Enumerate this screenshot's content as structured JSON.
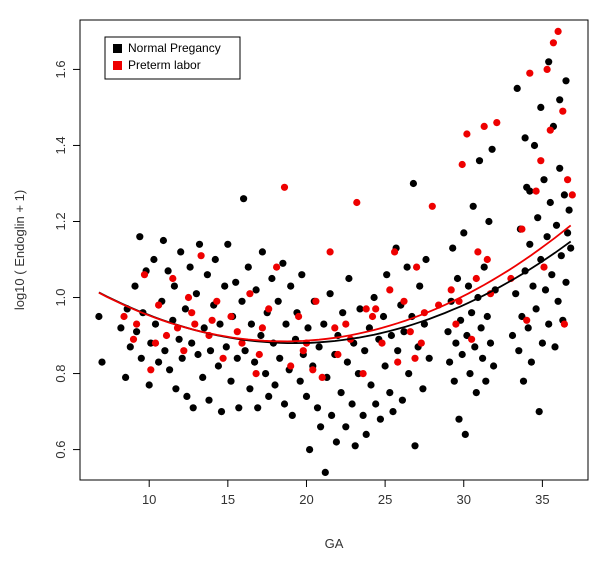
{
  "chart_data": {
    "type": "scatter",
    "xlabel": "GA",
    "ylabel": "log10 ( Endoglin + 1)",
    "xlim": [
      5.6,
      37.9
    ],
    "ylim": [
      0.52,
      1.73
    ],
    "xticks": [
      10,
      15,
      20,
      25,
      30,
      35
    ],
    "yticks": [
      0.6,
      0.8,
      1.0,
      1.2,
      1.4,
      1.6
    ],
    "xtick_labels": [
      "10",
      "15",
      "20",
      "25",
      "30",
      "35"
    ],
    "ytick_labels": [
      "0.6",
      "0.8",
      "1.0",
      "1.2",
      "1.4",
      "1.6"
    ],
    "legend": {
      "position": "top-left"
    },
    "colors": {
      "normal": "#000000",
      "preterm": "#ee0000"
    },
    "series": [
      {
        "name": "Normal Pregancy",
        "color": "#000000",
        "points": [
          [
            6.8,
            0.95
          ],
          [
            7.0,
            0.83
          ],
          [
            8.2,
            0.92
          ],
          [
            8.5,
            0.79
          ],
          [
            8.6,
            0.97
          ],
          [
            8.8,
            0.87
          ],
          [
            9.1,
            1.03
          ],
          [
            9.2,
            0.91
          ],
          [
            9.4,
            1.16
          ],
          [
            9.5,
            0.84
          ],
          [
            9.6,
            0.96
          ],
          [
            9.8,
            1.07
          ],
          [
            10.0,
            0.77
          ],
          [
            10.1,
            0.88
          ],
          [
            10.3,
            1.1
          ],
          [
            10.4,
            0.93
          ],
          [
            10.6,
            0.83
          ],
          [
            10.8,
            0.99
          ],
          [
            10.9,
            1.15
          ],
          [
            11.0,
            0.86
          ],
          [
            11.2,
            1.07
          ],
          [
            11.3,
            0.81
          ],
          [
            11.5,
            0.94
          ],
          [
            11.6,
            1.03
          ],
          [
            11.7,
            0.76
          ],
          [
            11.9,
            0.89
          ],
          [
            12.0,
            1.12
          ],
          [
            12.1,
            0.84
          ],
          [
            12.3,
            0.97
          ],
          [
            12.4,
            0.74
          ],
          [
            12.6,
            1.08
          ],
          [
            12.7,
            0.88
          ],
          [
            12.8,
            0.71
          ],
          [
            13.0,
            1.01
          ],
          [
            13.1,
            0.85
          ],
          [
            13.2,
            1.14
          ],
          [
            13.4,
            0.79
          ],
          [
            13.5,
            0.92
          ],
          [
            13.7,
            1.06
          ],
          [
            13.8,
            0.73
          ],
          [
            13.9,
            0.86
          ],
          [
            14.1,
            0.98
          ],
          [
            14.2,
            1.1
          ],
          [
            14.4,
            0.82
          ],
          [
            14.5,
            0.93
          ],
          [
            14.6,
            0.7
          ],
          [
            14.8,
            1.03
          ],
          [
            14.9,
            0.87
          ],
          [
            15.0,
            1.14
          ],
          [
            15.2,
            0.78
          ],
          [
            15.3,
            0.95
          ],
          [
            15.5,
            1.04
          ],
          [
            15.6,
            0.84
          ],
          [
            15.7,
            0.71
          ],
          [
            15.9,
            0.99
          ],
          [
            16.0,
            1.26
          ],
          [
            16.1,
            0.86
          ],
          [
            16.3,
            1.08
          ],
          [
            16.4,
            0.76
          ],
          [
            16.5,
            0.93
          ],
          [
            16.7,
            0.83
          ],
          [
            16.8,
            1.02
          ],
          [
            16.9,
            0.71
          ],
          [
            17.1,
            0.9
          ],
          [
            17.2,
            1.12
          ],
          [
            17.4,
            0.8
          ],
          [
            17.5,
            0.96
          ],
          [
            17.6,
            0.74
          ],
          [
            17.8,
            1.05
          ],
          [
            17.9,
            0.88
          ],
          [
            18.0,
            0.77
          ],
          [
            18.2,
            0.99
          ],
          [
            18.3,
            0.84
          ],
          [
            18.5,
            1.09
          ],
          [
            18.6,
            0.72
          ],
          [
            18.7,
            0.93
          ],
          [
            18.9,
            0.81
          ],
          [
            19.0,
            1.03
          ],
          [
            19.1,
            0.69
          ],
          [
            19.3,
            0.89
          ],
          [
            19.4,
            0.96
          ],
          [
            19.6,
            0.78
          ],
          [
            19.7,
            1.06
          ],
          [
            19.8,
            0.85
          ],
          [
            20.0,
            0.74
          ],
          [
            20.1,
            0.92
          ],
          [
            20.2,
            0.6
          ],
          [
            20.4,
            0.82
          ],
          [
            20.5,
            0.99
          ],
          [
            20.7,
            0.71
          ],
          [
            20.8,
            0.87
          ],
          [
            20.9,
            0.66
          ],
          [
            21.1,
            0.93
          ],
          [
            21.2,
            0.54
          ],
          [
            21.3,
            0.79
          ],
          [
            21.5,
            1.01
          ],
          [
            21.6,
            0.69
          ],
          [
            21.8,
            0.85
          ],
          [
            21.9,
            0.62
          ],
          [
            22.0,
            0.9
          ],
          [
            22.2,
            0.75
          ],
          [
            22.3,
            0.96
          ],
          [
            22.5,
            0.66
          ],
          [
            22.6,
            0.83
          ],
          [
            22.7,
            1.05
          ],
          [
            22.9,
            0.72
          ],
          [
            23.0,
            0.88
          ],
          [
            23.1,
            0.61
          ],
          [
            23.3,
            0.8
          ],
          [
            23.4,
            0.97
          ],
          [
            23.6,
            0.69
          ],
          [
            23.7,
            0.86
          ],
          [
            23.8,
            0.64
          ],
          [
            24.0,
            0.92
          ],
          [
            24.1,
            0.77
          ],
          [
            24.3,
            1.0
          ],
          [
            24.4,
            0.72
          ],
          [
            24.6,
            0.89
          ],
          [
            24.7,
            0.68
          ],
          [
            24.9,
            0.95
          ],
          [
            25.0,
            0.82
          ],
          [
            25.1,
            1.06
          ],
          [
            25.3,
            0.75
          ],
          [
            25.4,
            0.9
          ],
          [
            25.5,
            0.7
          ],
          [
            25.7,
            1.13
          ],
          [
            25.8,
            0.86
          ],
          [
            26.0,
            0.98
          ],
          [
            26.1,
            0.73
          ],
          [
            26.2,
            0.91
          ],
          [
            26.4,
            1.08
          ],
          [
            26.5,
            0.8
          ],
          [
            26.7,
            0.95
          ],
          [
            26.8,
            1.3
          ],
          [
            26.9,
            0.61
          ],
          [
            27.1,
            0.87
          ],
          [
            27.2,
            1.03
          ],
          [
            27.4,
            0.76
          ],
          [
            27.5,
            0.93
          ],
          [
            27.6,
            1.1
          ],
          [
            27.8,
            0.84
          ],
          [
            29.0,
            0.91
          ],
          [
            29.1,
            0.83
          ],
          [
            29.2,
            0.99
          ],
          [
            29.3,
            1.13
          ],
          [
            29.4,
            0.78
          ],
          [
            29.5,
            0.88
          ],
          [
            29.6,
            1.05
          ],
          [
            29.7,
            0.68
          ],
          [
            29.8,
            0.94
          ],
          [
            29.9,
            0.85
          ],
          [
            30.0,
            1.17
          ],
          [
            30.1,
            0.64
          ],
          [
            30.2,
            0.9
          ],
          [
            30.3,
            1.03
          ],
          [
            30.4,
            0.8
          ],
          [
            30.5,
            0.96
          ],
          [
            30.6,
            1.24
          ],
          [
            30.7,
            0.87
          ],
          [
            30.8,
            0.75
          ],
          [
            30.9,
            1.0
          ],
          [
            31.0,
            1.36
          ],
          [
            31.1,
            0.92
          ],
          [
            31.2,
            0.84
          ],
          [
            31.3,
            1.08
          ],
          [
            31.4,
            0.78
          ],
          [
            31.5,
            0.95
          ],
          [
            31.6,
            1.2
          ],
          [
            31.7,
            0.88
          ],
          [
            31.8,
            1.39
          ],
          [
            31.9,
            0.82
          ],
          [
            32.0,
            1.02
          ],
          [
            33.1,
            0.9
          ],
          [
            33.3,
            1.01
          ],
          [
            33.5,
            0.86
          ],
          [
            33.6,
            1.18
          ],
          [
            33.7,
            0.95
          ],
          [
            33.8,
            0.78
          ],
          [
            33.9,
            1.07
          ],
          [
            34.0,
            1.29
          ],
          [
            34.1,
            0.92
          ],
          [
            34.2,
            1.14
          ],
          [
            34.3,
            0.83
          ],
          [
            34.4,
            1.03
          ],
          [
            34.5,
            1.4
          ],
          [
            34.6,
            0.97
          ],
          [
            34.7,
            1.21
          ],
          [
            34.8,
            0.7
          ],
          [
            34.9,
            1.1
          ],
          [
            35.0,
            0.88
          ],
          [
            35.1,
            1.31
          ],
          [
            35.2,
            1.02
          ],
          [
            35.3,
            1.16
          ],
          [
            35.4,
            0.93
          ],
          [
            35.5,
            1.25
          ],
          [
            35.6,
            1.06
          ],
          [
            35.7,
            1.45
          ],
          [
            35.8,
            0.87
          ],
          [
            35.9,
            1.19
          ],
          [
            36.0,
            0.99
          ],
          [
            36.1,
            1.34
          ],
          [
            36.2,
            1.11
          ],
          [
            36.3,
            0.94
          ],
          [
            36.4,
            1.27
          ],
          [
            36.5,
            1.04
          ],
          [
            36.6,
            1.17
          ],
          [
            36.7,
            1.23
          ],
          [
            36.8,
            1.13
          ],
          [
            33.4,
            1.55
          ],
          [
            34.9,
            1.5
          ],
          [
            35.4,
            1.62
          ],
          [
            36.1,
            1.52
          ],
          [
            36.5,
            1.57
          ],
          [
            34.2,
            1.28
          ],
          [
            33.9,
            1.42
          ]
        ]
      },
      {
        "name": "Preterm labor",
        "color": "#ee0000",
        "points": [
          [
            8.4,
            0.95
          ],
          [
            9.0,
            0.89
          ],
          [
            9.7,
            1.06
          ],
          [
            10.1,
            0.81
          ],
          [
            10.6,
            0.98
          ],
          [
            11.1,
            0.9
          ],
          [
            11.5,
            1.05
          ],
          [
            12.2,
            0.86
          ],
          [
            12.5,
            1.0
          ],
          [
            12.9,
            0.93
          ],
          [
            13.3,
            1.11
          ],
          [
            13.8,
            0.9
          ],
          [
            14.3,
            0.99
          ],
          [
            14.7,
            0.84
          ],
          [
            15.2,
            0.95
          ],
          [
            15.9,
            0.88
          ],
          [
            16.4,
            1.01
          ],
          [
            17.0,
            0.85
          ],
          [
            17.6,
            0.97
          ],
          [
            18.1,
            1.08
          ],
          [
            18.6,
            1.29
          ],
          [
            19.0,
            0.82
          ],
          [
            19.5,
            0.95
          ],
          [
            20.0,
            0.88
          ],
          [
            20.6,
            0.99
          ],
          [
            21.0,
            0.79
          ],
          [
            21.5,
            1.12
          ],
          [
            22.0,
            0.85
          ],
          [
            22.5,
            0.93
          ],
          [
            23.2,
            1.25
          ],
          [
            23.6,
            0.8
          ],
          [
            24.2,
            0.95
          ],
          [
            24.8,
            0.88
          ],
          [
            25.3,
            1.02
          ],
          [
            25.8,
            0.83
          ],
          [
            26.2,
            0.99
          ],
          [
            26.6,
            0.91
          ],
          [
            27.0,
            1.08
          ],
          [
            27.5,
            0.96
          ],
          [
            28.0,
            1.24
          ],
          [
            29.2,
            1.02
          ],
          [
            29.5,
            0.93
          ],
          [
            29.9,
            1.35
          ],
          [
            30.2,
            1.43
          ],
          [
            30.5,
            0.89
          ],
          [
            30.9,
            1.12
          ],
          [
            31.3,
            1.45
          ],
          [
            31.7,
            1.01
          ],
          [
            32.1,
            1.46
          ],
          [
            33.7,
            1.18
          ],
          [
            34.2,
            1.59
          ],
          [
            34.6,
            1.28
          ],
          [
            34.9,
            1.36
          ],
          [
            35.3,
            1.6
          ],
          [
            35.5,
            1.44
          ],
          [
            35.7,
            1.67
          ],
          [
            36.0,
            1.7
          ],
          [
            36.3,
            1.49
          ],
          [
            36.6,
            1.31
          ],
          [
            36.9,
            1.27
          ],
          [
            35.1,
            1.08
          ],
          [
            34.0,
            0.94
          ],
          [
            36.4,
            0.93
          ],
          [
            33.0,
            1.05
          ],
          [
            31.5,
            1.1
          ],
          [
            30.8,
            1.05
          ],
          [
            29.7,
            0.99
          ],
          [
            27.3,
            0.88
          ],
          [
            25.6,
            1.12
          ],
          [
            24.4,
            0.97
          ],
          [
            22.8,
            0.89
          ],
          [
            21.8,
            0.92
          ],
          [
            19.8,
            0.86
          ],
          [
            17.2,
            0.92
          ],
          [
            15.6,
            0.91
          ],
          [
            14.0,
            0.94
          ],
          [
            12.7,
            0.96
          ],
          [
            11.8,
            0.92
          ],
          [
            10.4,
            0.88
          ],
          [
            9.2,
            0.93
          ],
          [
            20.4,
            0.81
          ],
          [
            23.8,
            0.97
          ],
          [
            26.9,
            0.84
          ],
          [
            28.4,
            0.98
          ],
          [
            16.8,
            0.8
          ]
        ]
      }
    ],
    "fits": [
      {
        "series": "Normal Pregancy",
        "color": "#000000",
        "coef": [
          0.88,
          -4e-05,
          0.000865
        ]
      },
      {
        "series": "Preterm labor",
        "color": "#ee0000",
        "coef": [
          0.885,
          0.00112,
          0.00092
        ]
      }
    ],
    "fit_center": 19.2,
    "fit_range": [
      6.8,
      36.8
    ]
  }
}
